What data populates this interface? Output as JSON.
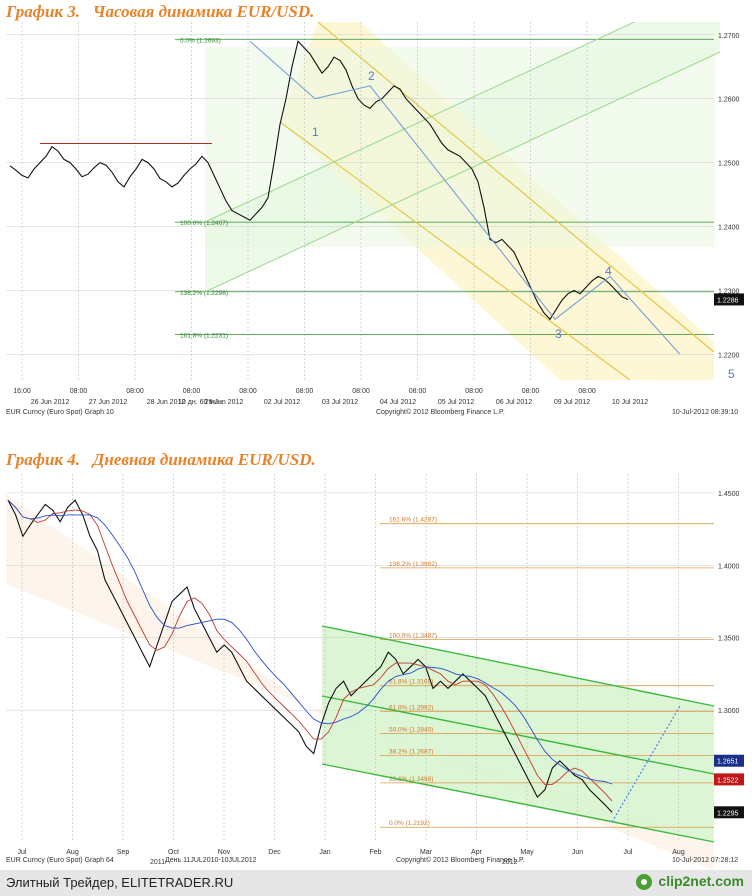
{
  "chart3_title": "График 3.   Часовая динамика EUR/USD.",
  "chart4_title": "График 4.   Дневная динамика EUR/USD.",
  "footer": {
    "text": "Элитный Трейдер, ELITETRADER.RU",
    "brand": "clip2net.com"
  },
  "chart_data": [
    {
      "type": "line",
      "title": "График 3.   Часовая динамика EUR/USD.",
      "x_top_ticks": [
        "16:00",
        "08:00",
        "08:00",
        "08:00",
        "08:00",
        "08:00",
        "08:00",
        "08:00",
        "08:00",
        "08:00",
        "08:00"
      ],
      "x_bottom_ticks": [
        "26 Jun 2012",
        "27 Jun 2012",
        "28 Jun 2012",
        "29 Jun 2012",
        "02 Jul 2012",
        "03 Jul 2012",
        "04 Jul 2012",
        "05 Jul 2012",
        "06 Jul 2012",
        "09 Jul 2012",
        "10 Jul 2012"
      ],
      "y_ticks": [
        "1.2700",
        "1.2600",
        "1.2500",
        "1.2400",
        "1.2300",
        "1.2200"
      ],
      "ylim": [
        1.216,
        1.272
      ],
      "last_price": "1.2286",
      "fib_levels": [
        {
          "label": "0.0% (1.2693)",
          "value": 1.2693
        },
        {
          "label": "100.0% (1.2407)",
          "value": 1.2407
        },
        {
          "label": "138.2% (1.2298)",
          "value": 1.2298
        },
        {
          "label": "161.8% (1.2231)",
          "value": 1.2231
        }
      ],
      "wave_labels": [
        "1",
        "2",
        "3",
        "4",
        "5"
      ],
      "footer_left": "EUR Curncy (Euro Spot) Graph 10",
      "footer_left2": "10 дн. 60 мин.",
      "footer_center": "Copyright© 2012 Bloomberg Finance L.P.",
      "footer_right": "10-Jul-2012 08:39:10",
      "close": [
        1.2495,
        1.2488,
        1.248,
        1.2476,
        1.249,
        1.25,
        1.251,
        1.2525,
        1.2518,
        1.2505,
        1.25,
        1.249,
        1.2478,
        1.2482,
        1.2492,
        1.25,
        1.2496,
        1.2485,
        1.247,
        1.2462,
        1.2478,
        1.249,
        1.2505,
        1.25,
        1.249,
        1.2475,
        1.247,
        1.2462,
        1.2468,
        1.248,
        1.249,
        1.2498,
        1.251,
        1.25,
        1.248,
        1.246,
        1.244,
        1.2425,
        1.242,
        1.2415,
        1.241,
        1.242,
        1.243,
        1.2445,
        1.25,
        1.256,
        1.26,
        1.265,
        1.269,
        1.268,
        1.267,
        1.2655,
        1.264,
        1.265,
        1.2665,
        1.266,
        1.2645,
        1.262,
        1.26,
        1.259,
        1.2585,
        1.2595,
        1.26,
        1.261,
        1.262,
        1.2615,
        1.26,
        1.259,
        1.258,
        1.257,
        1.256,
        1.2545,
        1.253,
        1.252,
        1.2515,
        1.251,
        1.25,
        1.249,
        1.247,
        1.243,
        1.238,
        1.2375,
        1.238,
        1.237,
        1.236,
        1.234,
        1.232,
        1.23,
        1.228,
        1.2265,
        1.2255,
        1.227,
        1.2285,
        1.2295,
        1.23,
        1.2295,
        1.2305,
        1.2315,
        1.2322,
        1.2318,
        1.231,
        1.23,
        1.229,
        1.2286
      ],
      "note": "EUR/USD hourly close approximation"
    },
    {
      "type": "line",
      "title": "График 4.   Дневная динамика EUR/USD.",
      "x_ticks": [
        "Jul",
        "Aug",
        "Sep",
        "Oct",
        "Nov",
        "Dec",
        "Jan",
        "Feb",
        "Mar",
        "Apr",
        "May",
        "Jun",
        "Jul",
        "Aug"
      ],
      "year_labels": [
        "2011",
        "2012"
      ],
      "y_ticks": [
        "1.4500",
        "1.4000",
        "1.3500",
        "1.3000"
      ],
      "ylim": [
        1.209,
        1.463
      ],
      "price_tags": [
        "1.2651",
        "1.2522",
        "1.2295"
      ],
      "fib_levels": [
        {
          "label": "161.8% (1.4287)",
          "value": 1.4287
        },
        {
          "label": "138.2% (1.3982)",
          "value": 1.3982
        },
        {
          "label": "100.0% (1.3487)",
          "value": 1.3487
        },
        {
          "label": "61.8% (1.3169)",
          "value": 1.3169
        },
        {
          "label": "61.8% (1.2992)",
          "value": 1.2992
        },
        {
          "label": "50.0% (1.2840)",
          "value": 1.284
        },
        {
          "label": "38.2% (1.2687)",
          "value": 1.2687
        },
        {
          "label": "23.6% (1.2498)",
          "value": 1.2498
        },
        {
          "label": "0.0% (1.2192)",
          "value": 1.2192
        }
      ],
      "footer_left": "EUR Curncy (Euro Spot) Graph 64",
      "footer_left2": "День 11JUL2010-10JUL2012",
      "footer_center": "Copyright© 2012 Bloomberg Finance L.P.",
      "footer_right": "10-Jul-2012 07:28:12",
      "close": [
        1.445,
        1.435,
        1.42,
        1.428,
        1.435,
        1.442,
        1.438,
        1.43,
        1.44,
        1.445,
        1.435,
        1.42,
        1.41,
        1.39,
        1.38,
        1.37,
        1.36,
        1.35,
        1.34,
        1.33,
        1.345,
        1.36,
        1.375,
        1.38,
        1.385,
        1.37,
        1.36,
        1.35,
        1.34,
        1.345,
        1.34,
        1.33,
        1.32,
        1.315,
        1.31,
        1.305,
        1.3,
        1.295,
        1.29,
        1.285,
        1.275,
        1.27,
        1.29,
        1.305,
        1.315,
        1.32,
        1.31,
        1.315,
        1.32,
        1.325,
        1.33,
        1.34,
        1.335,
        1.325,
        1.33,
        1.335,
        1.33,
        1.315,
        1.32,
        1.315,
        1.32,
        1.325,
        1.32,
        1.315,
        1.31,
        1.3,
        1.29,
        1.28,
        1.27,
        1.26,
        1.25,
        1.24,
        1.245,
        1.26,
        1.265,
        1.26,
        1.255,
        1.252,
        1.245,
        1.24,
        1.235,
        1.2295
      ],
      "ma_fast_note": "red moving average",
      "ma_slow_note": "blue moving average"
    }
  ]
}
